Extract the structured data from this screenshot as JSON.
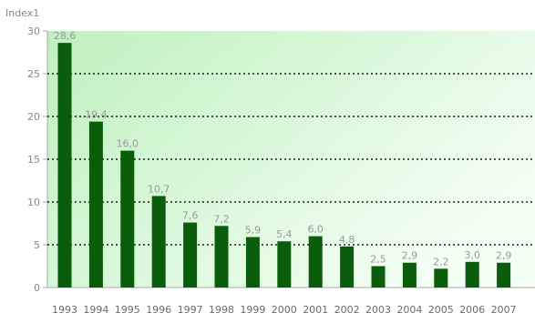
{
  "chart_data": {
    "type": "bar",
    "ylabel": "Index1",
    "categories": [
      "1993",
      "1994",
      "1995",
      "1996",
      "1997",
      "1998",
      "1999",
      "2000",
      "2001",
      "2002",
      "2003",
      "2004",
      "2005",
      "2006",
      "2007"
    ],
    "values": [
      28.6,
      19.4,
      16.0,
      10.7,
      7.6,
      7.2,
      5.9,
      5.4,
      6.0,
      4.8,
      2.5,
      2.9,
      2.2,
      3.0,
      2.9
    ],
    "value_labels": [
      "28,6",
      "19,4",
      "16,0",
      "10,7",
      "7,6",
      "7,2",
      "5,9",
      "5,4",
      "6,0",
      "4,8",
      "2,5",
      "2,9",
      "2,2",
      "3,0",
      "2,9"
    ],
    "yticks": [
      0,
      5,
      10,
      15,
      20,
      25,
      30
    ],
    "ylim": [
      0,
      30
    ],
    "grid": true,
    "colors": {
      "bar": "#0a5d0a",
      "plot_bg_start": "#bff0bf",
      "plot_bg_end": "#f4fff4",
      "grid": "#1a1a1a"
    }
  }
}
